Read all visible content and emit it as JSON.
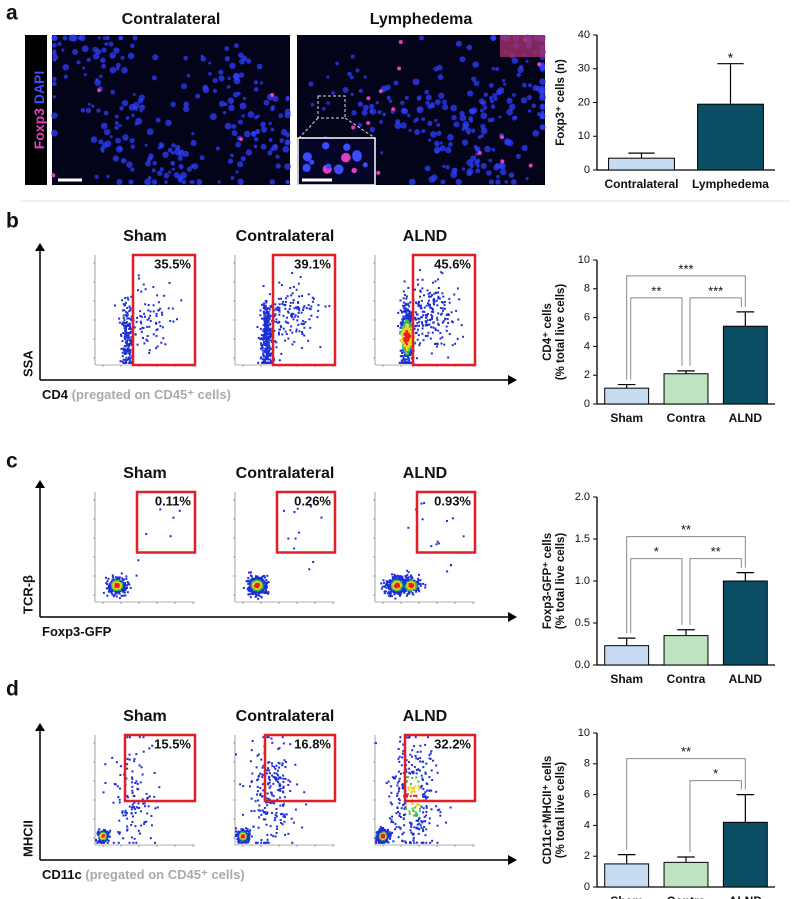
{
  "figure": {
    "panel_labels": [
      "a",
      "b",
      "c",
      "d"
    ],
    "microscopy": {
      "titles": [
        "Contralateral",
        "Lymphedema"
      ],
      "stain": [
        "Foxp3",
        "DAPI"
      ]
    },
    "flow": [
      {
        "plots": [
          {
            "title": "Sham",
            "gate": "35.5%"
          },
          {
            "title": "Contralateral",
            "gate": "39.1%"
          },
          {
            "title": "ALND",
            "gate": "45.6%"
          }
        ],
        "y_label": "SSA",
        "x_label": "CD4",
        "x_note": "(pregated on CD45⁺ cells)"
      },
      {
        "plots": [
          {
            "title": "Sham",
            "gate": "0.11%"
          },
          {
            "title": "Contralateral",
            "gate": "0.26%"
          },
          {
            "title": "ALND",
            "gate": "0.93%"
          }
        ],
        "y_label": "TCR-β",
        "x_label": "Foxp3-GFP"
      },
      {
        "plots": [
          {
            "title": "Sham",
            "gate": "15.5%"
          },
          {
            "title": "Contralateral",
            "gate": "16.8%"
          },
          {
            "title": "ALND",
            "gate": "32.2%"
          }
        ],
        "y_label": "MHCII",
        "x_label": "CD11c",
        "x_note": "(pregated on CD45⁺ cells)"
      }
    ]
  },
  "chart_data": [
    {
      "type": "bar",
      "ylabel": [
        "Foxp3⁺ cells (n)"
      ],
      "categories": [
        "Contralateral",
        "Lymphedema"
      ],
      "values": [
        3.5,
        19.5
      ],
      "errors": [
        1.5,
        12
      ],
      "colors": [
        "#c5dcf2",
        "#0b4d63"
      ],
      "ylim": [
        0,
        40
      ],
      "yticks": [
        0,
        10,
        20,
        30,
        40
      ],
      "significance": [
        {
          "between": [
            "Lymphedema"
          ],
          "label": "*"
        }
      ]
    },
    {
      "type": "bar",
      "ylabel": [
        "CD4⁺ cells",
        "(% total live cells)"
      ],
      "categories": [
        "Sham",
        "Contra",
        "ALND"
      ],
      "values": [
        1.1,
        2.1,
        5.4
      ],
      "errors": [
        0.25,
        0.2,
        1.0
      ],
      "colors": [
        "#c5dcf2",
        "#bfe3bf",
        "#0b4d63"
      ],
      "ylim": [
        0,
        10
      ],
      "yticks": [
        0,
        2,
        4,
        6,
        8,
        10
      ],
      "significance": [
        {
          "between": [
            "Sham",
            "Contra"
          ],
          "label": "**"
        },
        {
          "between": [
            "Contra",
            "ALND"
          ],
          "label": "***"
        },
        {
          "between": [
            "Sham",
            "ALND"
          ],
          "label": "***"
        }
      ]
    },
    {
      "type": "bar",
      "ylabel": [
        "Foxp3-GFP⁺ cells",
        "(% total live cells)"
      ],
      "categories": [
        "Sham",
        "Contra",
        "ALND"
      ],
      "values": [
        0.23,
        0.35,
        1.0
      ],
      "errors": [
        0.09,
        0.07,
        0.1
      ],
      "colors": [
        "#c5dcf2",
        "#bfe3bf",
        "#0b4d63"
      ],
      "ylim": [
        0,
        2
      ],
      "yticks": [
        {
          "value": 0,
          "label": "0.0"
        },
        0.5,
        {
          "value": 1,
          "label": "1.0"
        },
        1.5,
        {
          "value": 2,
          "label": "2.0"
        }
      ],
      "significance": [
        {
          "between": [
            "Sham",
            "Contra"
          ],
          "label": "*"
        },
        {
          "between": [
            "Contra",
            "ALND"
          ],
          "label": "**"
        },
        {
          "between": [
            "Sham",
            "ALND"
          ],
          "label": "**"
        }
      ]
    },
    {
      "type": "bar",
      "ylabel": [
        "CD11c⁺MHCII⁺ cells",
        "(% total live cells)"
      ],
      "categories": [
        "Sham",
        "Contra",
        "ALND"
      ],
      "values": [
        1.5,
        1.6,
        4.2
      ],
      "errors": [
        0.6,
        0.35,
        1.8
      ],
      "colors": [
        "#c5dcf2",
        "#bfe3bf",
        "#0b4d63"
      ],
      "ylim": [
        0,
        10
      ],
      "yticks": [
        0,
        2,
        4,
        6,
        8,
        10
      ],
      "significance": [
        {
          "between": [
            "Contra",
            "ALND"
          ],
          "label": "*"
        },
        {
          "between": [
            "Sham",
            "ALND"
          ],
          "label": "**"
        }
      ]
    }
  ]
}
